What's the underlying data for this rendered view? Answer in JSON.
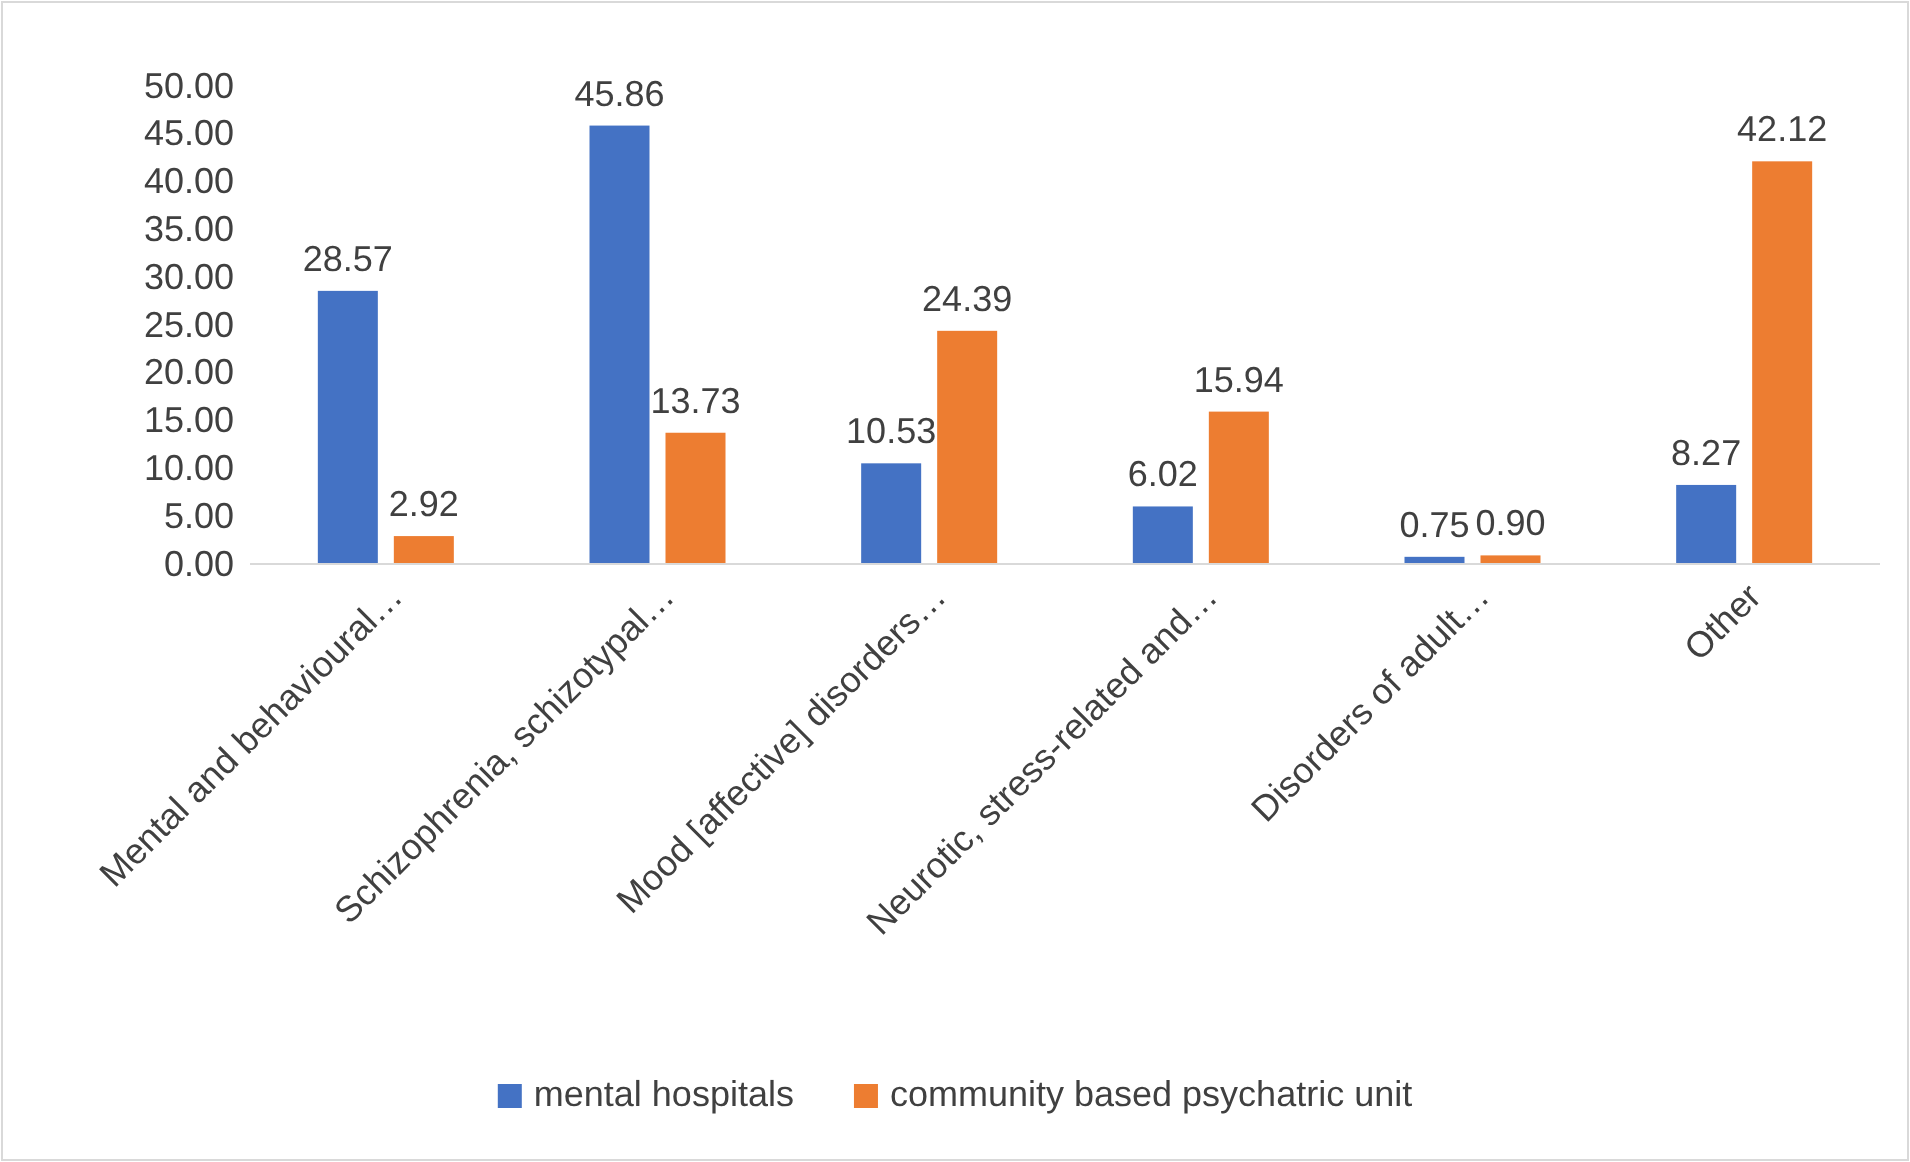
{
  "chart_data": {
    "type": "bar",
    "categories": [
      "Mental and behavioural…",
      "Schizophrenia, schizotypal…",
      "Mood [affective] disorders…",
      "Neurotic, stress-related and…",
      "Disorders of adult…",
      "Other"
    ],
    "series": [
      {
        "name": "mental hospitals",
        "color": "#4472c4",
        "values": [
          28.57,
          45.86,
          10.53,
          6.02,
          0.75,
          8.27
        ],
        "value_labels": [
          "28.57",
          "45.86",
          "10.53",
          "6.02",
          "0.75",
          "8.27"
        ]
      },
      {
        "name": "community based psychatric unit",
        "color": "#ed7d31",
        "values": [
          2.92,
          13.73,
          24.39,
          15.94,
          0.9,
          42.12
        ],
        "value_labels": [
          "2.92",
          "13.73",
          "24.39",
          "15.94",
          "0.90",
          "42.12"
        ]
      }
    ],
    "ylim": [
      0,
      50
    ],
    "yticks": [
      {
        "value": 0,
        "label": "0.00"
      },
      {
        "value": 5,
        "label": "5.00"
      },
      {
        "value": 10,
        "label": "10.00"
      },
      {
        "value": 15,
        "label": "15.00"
      },
      {
        "value": 20,
        "label": "20.00"
      },
      {
        "value": 25,
        "label": "25.00"
      },
      {
        "value": 30,
        "label": "30.00"
      },
      {
        "value": 35,
        "label": "35.00"
      },
      {
        "value": 40,
        "label": "40.00"
      },
      {
        "value": 45,
        "label": "45.00"
      },
      {
        "value": 50,
        "label": "50.00"
      }
    ],
    "legend": "bottom"
  }
}
